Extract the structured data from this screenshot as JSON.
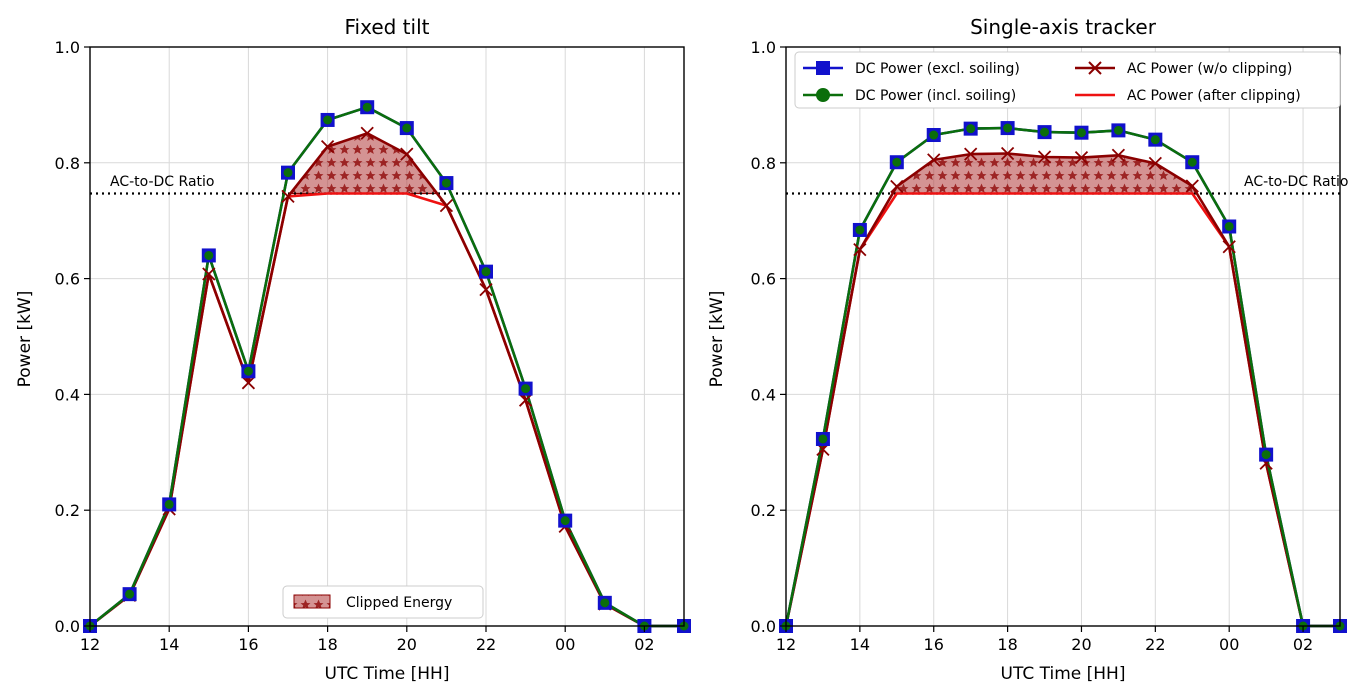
{
  "chart_data": [
    {
      "type": "line",
      "title": "Fixed tilt",
      "xlabel": "UTC Time [HH]",
      "ylabel": "Power [kW]",
      "x_hours_elapsed_from_12": [
        0,
        1,
        2,
        3,
        4,
        5,
        6,
        7,
        8,
        9,
        10,
        11,
        12,
        13,
        14,
        15
      ],
      "xticks": [
        "12",
        "14",
        "16",
        "18",
        "20",
        "22",
        "00",
        "02"
      ],
      "yticks": [
        "0.0",
        "0.2",
        "0.4",
        "0.6",
        "0.8",
        "1.0"
      ],
      "xlim": [
        "12",
        "03"
      ],
      "ylim": [
        0,
        1.0
      ],
      "grid": true,
      "ac_dc_ratio": 0.747,
      "ac_dc_ratio_label": "AC-to-DC Ratio",
      "series": [
        {
          "name": "DC Power (excl. soiling)",
          "color": "#1111cc",
          "marker": "square",
          "values": [
            0.0,
            0.055,
            0.21,
            0.64,
            0.44,
            0.783,
            0.874,
            0.896,
            0.86,
            0.765,
            0.612,
            0.41,
            0.182,
            0.04,
            0.0,
            0.0
          ]
        },
        {
          "name": "DC Power (incl. soiling)",
          "color": "#0b6e0b",
          "marker": "circle",
          "values": [
            0.0,
            0.055,
            0.21,
            0.64,
            0.44,
            0.783,
            0.874,
            0.896,
            0.86,
            0.765,
            0.612,
            0.41,
            0.182,
            0.04,
            0.0,
            0.0
          ]
        },
        {
          "name": "AC Power (w/o clipping)",
          "color": "#8b0000",
          "marker": "x",
          "values": [
            0.0,
            0.053,
            0.202,
            0.608,
            0.42,
            0.742,
            0.828,
            0.851,
            0.815,
            0.726,
            0.581,
            0.39,
            0.172,
            0.038,
            0.0,
            0.0
          ]
        },
        {
          "name": "AC Power (after clipping)",
          "color": "#ee1111",
          "marker": "none",
          "values": [
            0.0,
            0.053,
            0.202,
            0.608,
            0.42,
            0.742,
            0.747,
            0.747,
            0.747,
            0.726,
            0.581,
            0.39,
            0.172,
            0.038,
            0.0,
            0.0
          ]
        }
      ],
      "legend": {
        "placement": "lower center",
        "items": [
          "Clipped Energy"
        ]
      },
      "fill_label": "Clipped Energy"
    },
    {
      "type": "line",
      "title": "Single-axis tracker",
      "xlabel": "UTC Time [HH]",
      "ylabel": "Power [kW]",
      "x_hours_elapsed_from_12": [
        0,
        1,
        2,
        3,
        4,
        5,
        6,
        7,
        8,
        9,
        10,
        11,
        12,
        13,
        14,
        15
      ],
      "xticks": [
        "12",
        "14",
        "16",
        "18",
        "20",
        "22",
        "00",
        "02"
      ],
      "yticks": [
        "0.0",
        "0.2",
        "0.4",
        "0.6",
        "0.8",
        "1.0"
      ],
      "xlim": [
        "12",
        "03"
      ],
      "ylim": [
        0,
        1.0
      ],
      "grid": true,
      "ac_dc_ratio": 0.747,
      "ac_dc_ratio_label": "AC-to-DC Ratio",
      "series": [
        {
          "name": "DC Power (excl. soiling)",
          "color": "#1111cc",
          "marker": "square",
          "values": [
            0.0,
            0.323,
            0.684,
            0.801,
            0.848,
            0.859,
            0.86,
            0.853,
            0.852,
            0.856,
            0.84,
            0.801,
            0.69,
            0.296,
            0.0,
            0.0
          ]
        },
        {
          "name": "DC Power (incl. soiling)",
          "color": "#0b6e0b",
          "marker": "circle",
          "values": [
            0.0,
            0.323,
            0.684,
            0.801,
            0.848,
            0.859,
            0.86,
            0.853,
            0.852,
            0.856,
            0.84,
            0.801,
            0.69,
            0.296,
            0.0,
            0.0
          ]
        },
        {
          "name": "AC Power (w/o clipping)",
          "color": "#8b0000",
          "marker": "x",
          "values": [
            0.0,
            0.305,
            0.65,
            0.759,
            0.805,
            0.815,
            0.816,
            0.81,
            0.809,
            0.813,
            0.799,
            0.76,
            0.655,
            0.281,
            0.0,
            0.0
          ]
        },
        {
          "name": "AC Power (after clipping)",
          "color": "#ee1111",
          "marker": "none",
          "values": [
            0.0,
            0.305,
            0.65,
            0.747,
            0.747,
            0.747,
            0.747,
            0.747,
            0.747,
            0.747,
            0.747,
            0.747,
            0.655,
            0.281,
            0.0,
            0.0
          ]
        }
      ],
      "legend": {
        "placement": "upper center",
        "columns": 2,
        "items": [
          "DC Power (excl. soiling)",
          "DC Power (incl. soiling)",
          "AC Power (w/o clipping)",
          "AC Power (after clipping)"
        ]
      }
    }
  ]
}
